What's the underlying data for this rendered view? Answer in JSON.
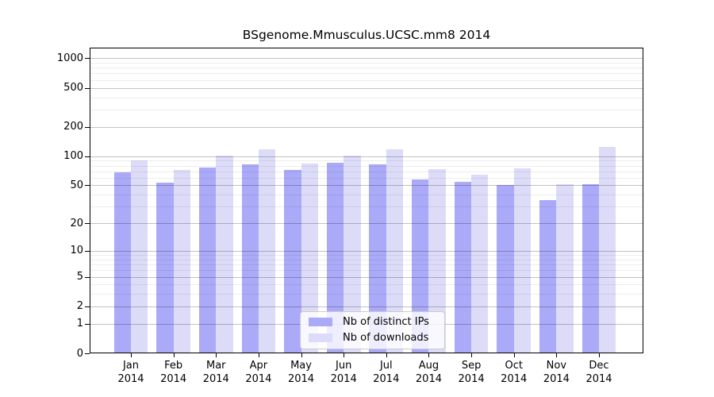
{
  "title": "BSgenome.Mmusculus.UCSC.mm8 2014",
  "legend": {
    "items": [
      {
        "label": "Nb of distinct IPs",
        "color": "#aaaaf8"
      },
      {
        "label": "Nb of downloads",
        "color": "#dcdcf8"
      }
    ]
  },
  "colors": {
    "ips_bar": "#aaaaf8",
    "downloads_bar": "#dcdcf8",
    "major_gridline": "#c2c2c2",
    "minor_gridline": "#ececec",
    "axis": "#000000"
  },
  "chart_data": {
    "type": "bar",
    "title": "BSgenome.Mmusculus.UCSC.mm8 2014",
    "categories": [
      "Jan 2014",
      "Feb 2014",
      "Mar 2014",
      "Apr 2014",
      "May 2014",
      "Jun 2014",
      "Jul 2014",
      "Aug 2014",
      "Sep 2014",
      "Oct 2014",
      "Nov 2014",
      "Dec 2014"
    ],
    "month_labels": [
      "Jan",
      "Feb",
      "Mar",
      "Apr",
      "May",
      "Jun",
      "Jul",
      "Aug",
      "Sep",
      "Oct",
      "Nov",
      "Dec"
    ],
    "year_label": "2014",
    "series": [
      {
        "name": "Nb of distinct IPs",
        "color": "#aaaaf8",
        "values": [
          68,
          53,
          76,
          82,
          72,
          86,
          83,
          58,
          54,
          50,
          35,
          51
        ]
      },
      {
        "name": "Nb of downloads",
        "color": "#dcdcf8",
        "values": [
          90,
          72,
          102,
          118,
          84,
          102,
          117,
          73,
          64,
          75,
          51,
          125
        ]
      }
    ],
    "yscale": "log1p",
    "y_ticks": [
      1000,
      500,
      200,
      100,
      50,
      20,
      10,
      5,
      2,
      1,
      0
    ],
    "y_minor_gridlines": [
      3,
      4,
      6,
      7,
      8,
      9,
      30,
      40,
      60,
      70,
      80,
      90,
      300,
      400,
      600,
      700,
      800,
      900
    ],
    "ylim": [
      0,
      1280
    ],
    "grid": true,
    "legend_position": "bottom-center-inside",
    "xlabel": "",
    "ylabel": ""
  }
}
